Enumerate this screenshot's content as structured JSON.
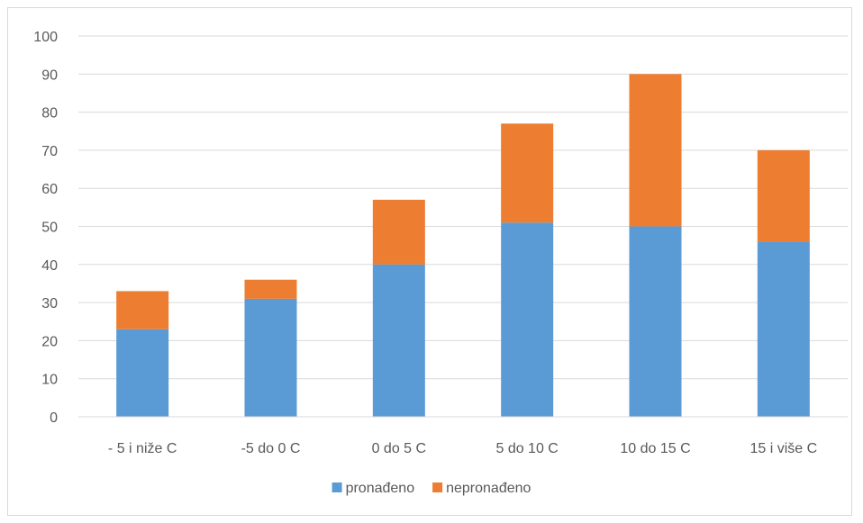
{
  "chart_data": {
    "type": "bar",
    "stacked": true,
    "categories": [
      "- 5 i niže C",
      "-5 do 0 C",
      "0 do 5 C",
      "5  do 10 C",
      "10 do 15 C",
      "15 i više C"
    ],
    "series": [
      {
        "name": "pronađeno",
        "color": "#5b9bd5",
        "values": [
          23,
          31,
          40,
          51,
          50,
          46
        ]
      },
      {
        "name": "nepronađeno",
        "color": "#ed7d31",
        "values": [
          10,
          5,
          17,
          26,
          40,
          24
        ]
      }
    ],
    "ylim": [
      0,
      100
    ],
    "yticks": [
      0,
      10,
      20,
      30,
      40,
      50,
      60,
      70,
      80,
      90,
      100
    ],
    "grid": true,
    "legend": "bottom",
    "title": "",
    "xlabel": "",
    "ylabel": ""
  }
}
